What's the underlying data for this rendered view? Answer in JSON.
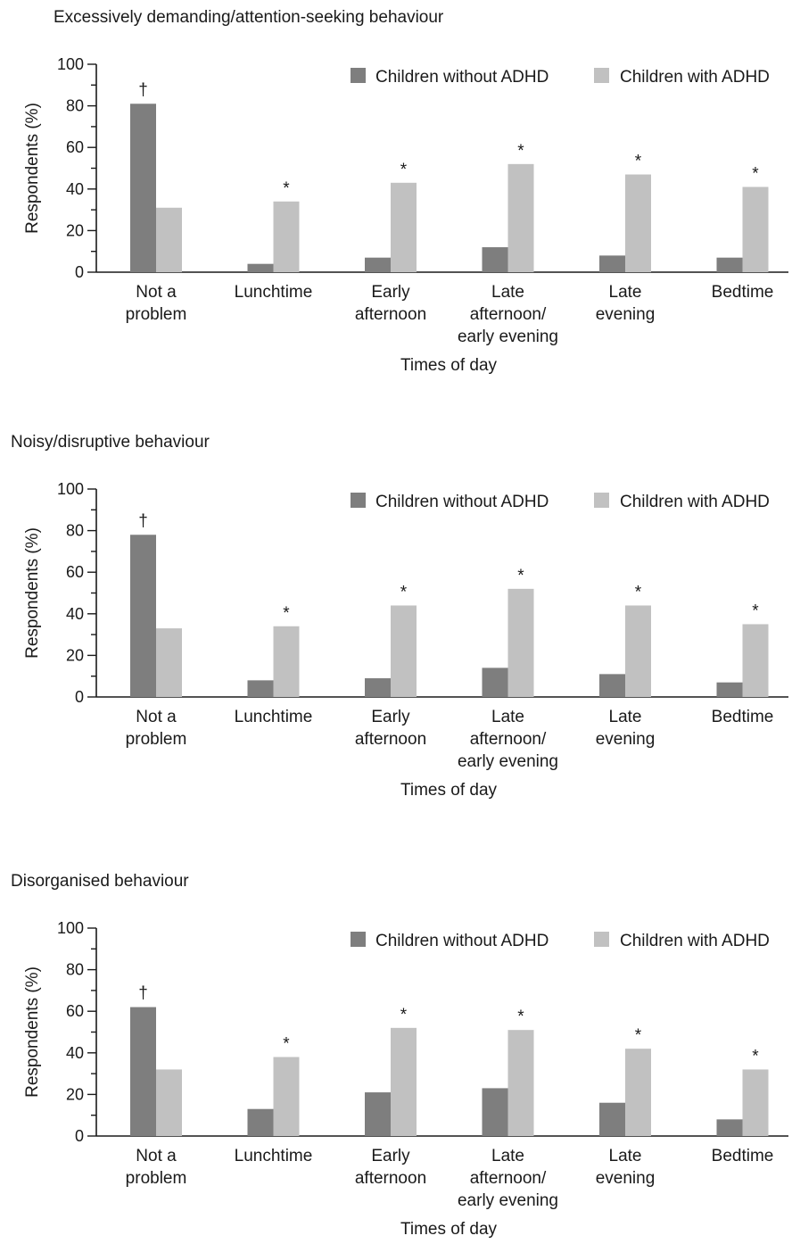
{
  "legend": {
    "without_label": "Children without ADHD",
    "with_label": "Children with ADHD",
    "placement": "top-right"
  },
  "colors": {
    "without": "#7e7e7e",
    "with": "#c1c1c1",
    "axis": "#1a1a1a"
  },
  "chart_data": [
    {
      "type": "bar",
      "title": "Excessively demanding/attention-seeking behaviour",
      "xlabel": "Times of day",
      "ylabel": "Respondents (%)",
      "ylim": [
        0,
        100
      ],
      "yticks": [
        "0",
        "20",
        "40",
        "60",
        "80",
        "100"
      ],
      "categories": [
        [
          "Not a",
          "problem"
        ],
        [
          "Lunchtime"
        ],
        [
          "Early",
          "afternoon"
        ],
        [
          "Late",
          "afternoon/",
          "early evening"
        ],
        [
          "Late",
          "evening"
        ],
        [
          "Bedtime"
        ]
      ],
      "series": [
        {
          "name": "Children without ADHD",
          "values": [
            81,
            4,
            7,
            12,
            8,
            7
          ]
        },
        {
          "name": "Children with ADHD",
          "values": [
            31,
            34,
            43,
            52,
            47,
            41
          ]
        }
      ],
      "markers": [
        "†",
        "*",
        "*",
        "*",
        "*",
        "*"
      ],
      "grid": false
    },
    {
      "type": "bar",
      "title": "Noisy/disruptive behaviour",
      "xlabel": "Times of day",
      "ylabel": "Respondents (%)",
      "ylim": [
        0,
        100
      ],
      "yticks": [
        "0",
        "20",
        "40",
        "60",
        "80",
        "100"
      ],
      "categories": [
        [
          "Not a",
          "problem"
        ],
        [
          "Lunchtime"
        ],
        [
          "Early",
          "afternoon"
        ],
        [
          "Late",
          "afternoon/",
          "early evening"
        ],
        [
          "Late",
          "evening"
        ],
        [
          "Bedtime"
        ]
      ],
      "series": [
        {
          "name": "Children without ADHD",
          "values": [
            78,
            8,
            9,
            14,
            11,
            7
          ]
        },
        {
          "name": "Children with ADHD",
          "values": [
            33,
            34,
            44,
            52,
            44,
            35
          ]
        }
      ],
      "markers": [
        "†",
        "*",
        "*",
        "*",
        "*",
        "*"
      ],
      "grid": false
    },
    {
      "type": "bar",
      "title": "Disorganised behaviour",
      "xlabel": "Times of day",
      "ylabel": "Respondents (%)",
      "ylim": [
        0,
        100
      ],
      "yticks": [
        "0",
        "20",
        "40",
        "60",
        "80",
        "100"
      ],
      "categories": [
        [
          "Not a",
          "problem"
        ],
        [
          "Lunchtime"
        ],
        [
          "Early",
          "afternoon"
        ],
        [
          "Late",
          "afternoon/",
          "early evening"
        ],
        [
          "Late",
          "evening"
        ],
        [
          "Bedtime"
        ]
      ],
      "series": [
        {
          "name": "Children without ADHD",
          "values": [
            62,
            13,
            21,
            23,
            16,
            8
          ]
        },
        {
          "name": "Children with ADHD",
          "values": [
            32,
            38,
            52,
            51,
            42,
            32
          ]
        }
      ],
      "markers": [
        "†",
        "*",
        "*",
        "*",
        "*",
        "*"
      ],
      "grid": false
    }
  ]
}
